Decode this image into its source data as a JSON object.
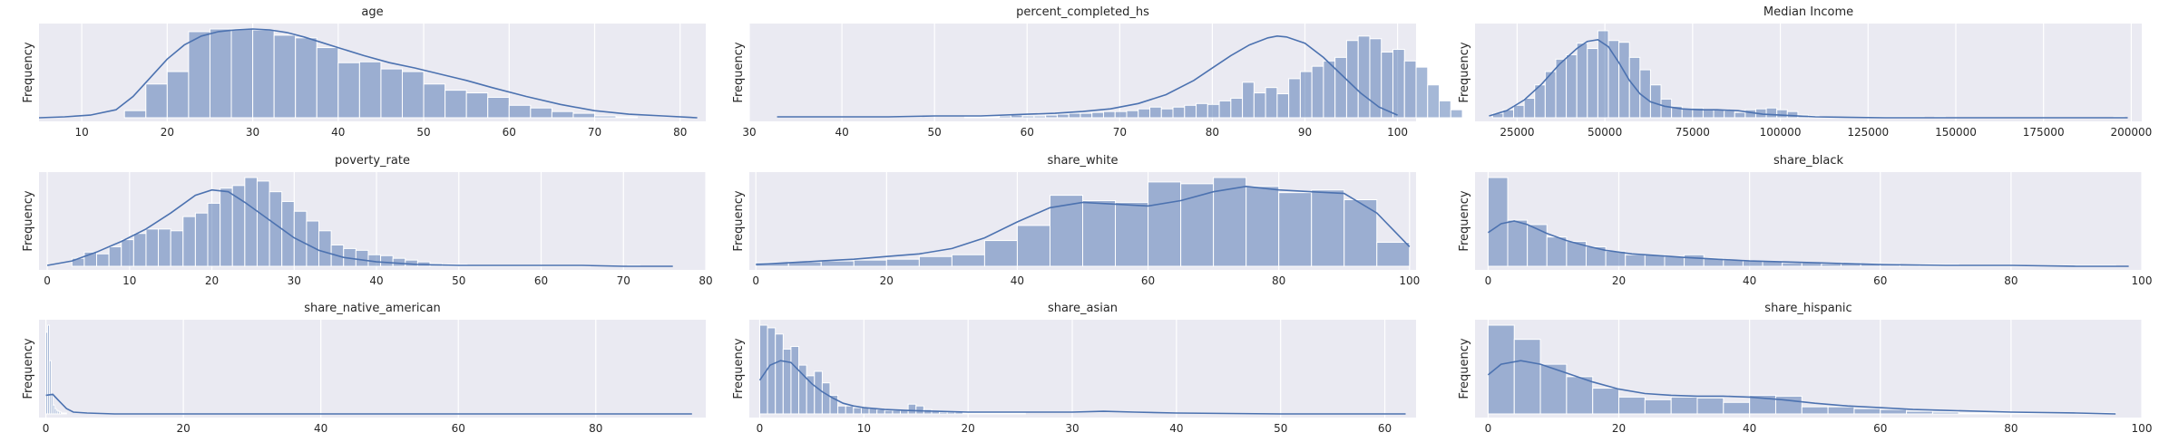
{
  "colors": {
    "panel_bg": "#eaeaf2",
    "series": "#4c72b0",
    "grid": "#ffffff",
    "text": "#262626"
  },
  "chart_data": [
    {
      "type": "bar",
      "title": "age",
      "ylabel": "Frequency",
      "xlim": [
        5,
        83
      ],
      "xticks": [
        10,
        20,
        30,
        40,
        50,
        60,
        70,
        80
      ],
      "bin_start": 15,
      "bin_width": 2.5,
      "values": [
        8,
        38,
        52,
        97,
        100,
        100,
        99,
        93,
        90,
        79,
        62,
        63,
        55,
        52,
        38,
        31,
        28,
        23,
        14,
        11,
        7,
        5,
        2,
        1
      ],
      "kde_x": [
        5,
        8,
        11,
        14,
        16,
        18,
        20,
        22,
        24,
        26,
        28,
        30,
        32,
        34,
        36,
        38,
        40,
        43,
        46,
        49,
        52,
        55,
        58,
        62,
        66,
        70,
        74,
        78,
        82
      ],
      "kde_y": [
        0,
        1,
        3,
        9,
        24,
        45,
        66,
        82,
        92,
        97,
        99,
        100,
        99,
        96,
        91,
        85,
        79,
        70,
        62,
        56,
        49,
        42,
        34,
        24,
        15,
        8,
        4,
        2,
        0
      ]
    },
    {
      "type": "bar",
      "title": "percent_completed_hs",
      "ylabel": "Frequency",
      "xlim": [
        30,
        102
      ],
      "xticks": [
        30,
        40,
        50,
        60,
        70,
        80,
        90,
        100
      ],
      "bin_start": 52,
      "bin_width": 1.25,
      "values": [
        0,
        1,
        1,
        1,
        2,
        3,
        2,
        2,
        3,
        4,
        5,
        5,
        6,
        7,
        7,
        8,
        10,
        12,
        10,
        12,
        14,
        16,
        15,
        19,
        22,
        40,
        28,
        34,
        27,
        44,
        52,
        58,
        64,
        68,
        87,
        92,
        89,
        74,
        77,
        64,
        57,
        37,
        19,
        9
      ],
      "kde_x": [
        33,
        40,
        45,
        50,
        55,
        60,
        63,
        66,
        69,
        72,
        75,
        78,
        80,
        82,
        84,
        86,
        87,
        88,
        90,
        92,
        94,
        96,
        98,
        100
      ],
      "kde_y": [
        1,
        1,
        1,
        2,
        2,
        4,
        5,
        7,
        10,
        16,
        26,
        42,
        56,
        70,
        82,
        90,
        92,
        91,
        84,
        68,
        48,
        28,
        12,
        3
      ]
    },
    {
      "type": "bar",
      "title": "Median Income",
      "ylabel": "Frequency",
      "xlim": [
        13000,
        203000
      ],
      "xticks": [
        25000,
        50000,
        75000,
        100000,
        125000,
        150000,
        175000,
        200000
      ],
      "bin_start": 18000,
      "bin_width": 3000,
      "values": [
        5,
        9,
        14,
        22,
        37,
        52,
        66,
        71,
        84,
        78,
        98,
        87,
        85,
        68,
        54,
        37,
        21,
        13,
        10,
        11,
        9,
        9,
        8,
        6,
        9,
        10,
        11,
        9,
        7,
        3,
        2,
        1,
        1,
        1,
        1,
        1,
        1,
        1,
        1,
        1,
        1,
        0,
        1,
        0,
        0,
        0,
        0,
        0,
        0,
        0,
        0,
        0,
        0,
        0,
        0,
        0,
        0,
        0,
        0,
        1
      ],
      "kde_x": [
        17000,
        22000,
        27000,
        32000,
        37000,
        42000,
        45000,
        48000,
        51000,
        54000,
        57000,
        60000,
        63000,
        67000,
        72000,
        77000,
        82000,
        88000,
        95000,
        110000,
        130000,
        160000,
        199000
      ],
      "kde_y": [
        2,
        8,
        20,
        38,
        60,
        78,
        86,
        88,
        80,
        62,
        42,
        27,
        18,
        13,
        10,
        9,
        9,
        8,
        4,
        1,
        0,
        0,
        0
      ]
    },
    {
      "type": "bar",
      "title": "poverty_rate",
      "ylabel": "Frequency",
      "xlim": [
        -1,
        80
      ],
      "xticks": [
        0,
        10,
        20,
        30,
        40,
        50,
        60,
        70,
        80
      ],
      "bin_start": 3,
      "bin_width": 1.5,
      "values": [
        9,
        16,
        14,
        22,
        30,
        37,
        42,
        42,
        40,
        56,
        60,
        71,
        88,
        91,
        100,
        96,
        84,
        73,
        62,
        51,
        40,
        24,
        20,
        18,
        13,
        12,
        9,
        7,
        5,
        3,
        2,
        2,
        1,
        1,
        1,
        1,
        1,
        1,
        1,
        1,
        1,
        1,
        0,
        0,
        0,
        1
      ],
      "kde_x": [
        0,
        3,
        6,
        9,
        12,
        15,
        18,
        20,
        22,
        24,
        27,
        30,
        33,
        36,
        40,
        45,
        50,
        55,
        60,
        65,
        70,
        76
      ],
      "kde_y": [
        1,
        6,
        16,
        28,
        42,
        60,
        80,
        86,
        84,
        72,
        52,
        32,
        18,
        10,
        5,
        2,
        1,
        1,
        1,
        1,
        0,
        0
      ]
    },
    {
      "type": "bar",
      "title": "share_white",
      "ylabel": "Frequency",
      "xlim": [
        -1,
        101
      ],
      "xticks": [
        0,
        20,
        40,
        60,
        80,
        100
      ],
      "bin_start": 0,
      "bin_width": 5,
      "values": [
        4,
        5,
        6,
        7,
        8,
        11,
        13,
        29,
        46,
        80,
        74,
        72,
        95,
        93,
        100,
        90,
        83,
        86,
        75,
        27
      ],
      "kde_x": [
        0,
        5,
        10,
        15,
        20,
        25,
        30,
        35,
        40,
        45,
        50,
        55,
        60,
        65,
        70,
        75,
        80,
        85,
        90,
        95,
        100
      ],
      "kde_y": [
        2,
        4,
        6,
        8,
        11,
        14,
        20,
        32,
        50,
        66,
        72,
        70,
        68,
        74,
        84,
        90,
        86,
        84,
        82,
        60,
        22
      ]
    },
    {
      "type": "bar",
      "title": "share_black",
      "ylabel": "Frequency",
      "xlim": [
        -2,
        100
      ],
      "xticks": [
        0,
        20,
        40,
        60,
        80,
        100
      ],
      "bin_start": 0,
      "bin_width": 3,
      "values": [
        100,
        52,
        47,
        33,
        28,
        22,
        17,
        13,
        13,
        11,
        13,
        9,
        7,
        6,
        6,
        4,
        4,
        3,
        4,
        3,
        3,
        2,
        2,
        2,
        1,
        1,
        1,
        1,
        1,
        1,
        1,
        1,
        0
      ],
      "kde_x": [
        0,
        2,
        4,
        6,
        9,
        12,
        15,
        18,
        22,
        26,
        30,
        35,
        40,
        45,
        50,
        55,
        60,
        70,
        80,
        90,
        98
      ],
      "kde_y": [
        38,
        48,
        51,
        47,
        37,
        29,
        23,
        18,
        14,
        12,
        10,
        8,
        6,
        5,
        4,
        3,
        2,
        1,
        1,
        0,
        0
      ]
    },
    {
      "type": "bar",
      "title": "share_native_american",
      "ylabel": "Frequency",
      "xlim": [
        -1,
        96
      ],
      "xticks": [
        0,
        20,
        40,
        60,
        80
      ],
      "bin_start": 0,
      "bin_width": 0.25,
      "values": [
        92,
        100,
        60,
        22,
        10,
        6,
        4,
        3,
        2,
        1,
        1,
        1
      ],
      "kde_x": [
        0,
        1,
        2,
        3,
        4,
        6,
        10,
        20,
        40,
        60,
        80,
        94
      ],
      "kde_y": [
        21,
        22,
        14,
        6,
        2,
        1,
        0,
        0,
        0,
        0,
        0,
        0
      ]
    },
    {
      "type": "bar",
      "title": "share_asian",
      "ylabel": "Frequency",
      "xlim": [
        -1,
        63
      ],
      "xticks": [
        0,
        10,
        20,
        30,
        40,
        50,
        60
      ],
      "bin_start": 0,
      "bin_width": 0.75,
      "values": [
        100,
        97,
        90,
        73,
        76,
        55,
        43,
        48,
        35,
        21,
        9,
        9,
        7,
        7,
        6,
        5,
        4,
        4,
        4,
        11,
        9,
        5,
        3,
        2,
        2,
        2,
        1,
        1,
        1,
        1,
        1,
        1,
        1,
        1
      ],
      "kde_x": [
        0,
        1,
        2,
        3,
        4,
        5,
        6,
        7,
        8,
        9,
        10,
        12,
        14,
        17,
        20,
        25,
        30,
        33,
        36,
        40,
        50,
        62
      ],
      "kde_y": [
        38,
        55,
        60,
        58,
        46,
        34,
        25,
        18,
        12,
        9,
        7,
        5,
        4,
        3,
        2,
        2,
        2,
        3,
        2,
        1,
        0,
        0
      ]
    },
    {
      "type": "bar",
      "title": "share_hispanic",
      "ylabel": "Frequency",
      "xlim": [
        -2,
        100
      ],
      "xticks": [
        0,
        20,
        40,
        60,
        80,
        100
      ],
      "bin_start": 0,
      "bin_width": 4,
      "values": [
        100,
        84,
        56,
        42,
        29,
        19,
        16,
        19,
        18,
        13,
        21,
        20,
        8,
        8,
        6,
        5,
        3,
        2,
        1,
        1,
        1,
        1,
        1,
        1
      ],
      "kde_x": [
        0,
        2,
        5,
        8,
        12,
        16,
        20,
        24,
        28,
        32,
        36,
        40,
        45,
        50,
        55,
        60,
        65,
        70,
        80,
        90,
        96
      ],
      "kde_y": [
        44,
        56,
        60,
        56,
        46,
        36,
        28,
        23,
        21,
        20,
        20,
        19,
        16,
        12,
        9,
        7,
        5,
        4,
        2,
        1,
        0
      ]
    }
  ]
}
